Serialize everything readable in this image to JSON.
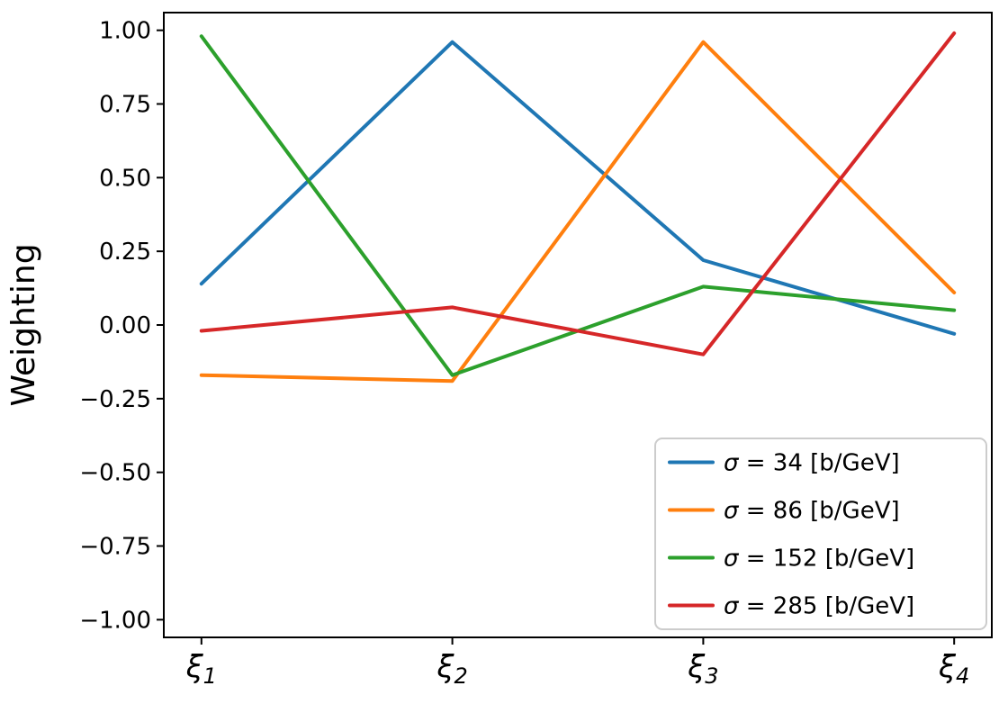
{
  "chart_data": {
    "type": "line",
    "title": "",
    "xlabel": "",
    "ylabel": "Weighting",
    "categories": [
      "ξ₁",
      "ξ₂",
      "ξ₃",
      "ξ₄"
    ],
    "series": [
      {
        "name": "σ = 34 [b/GeV]",
        "color": "#1f77b4",
        "values": [
          0.14,
          0.96,
          0.22,
          -0.03
        ]
      },
      {
        "name": "σ = 86 [b/GeV]",
        "color": "#ff7f0e",
        "values": [
          -0.17,
          -0.19,
          0.96,
          0.11
        ]
      },
      {
        "name": "σ = 152 [b/GeV]",
        "color": "#2ca02c",
        "values": [
          0.98,
          -0.17,
          0.13,
          0.05
        ]
      },
      {
        "name": "σ = 285 [b/GeV]",
        "color": "#d62728",
        "values": [
          -0.02,
          0.06,
          -0.1,
          0.99
        ]
      }
    ],
    "yticks": [
      -1.0,
      -0.75,
      -0.5,
      -0.25,
      0.0,
      0.25,
      0.5,
      0.75,
      1.0
    ],
    "ylim": [
      -1.06,
      1.06
    ],
    "x_margin": 0.15,
    "legend_position": "lower right",
    "grid": false,
    "axis_color": "#000000",
    "legend_border_color": "#cccccc",
    "background_color": "#ffffff"
  }
}
